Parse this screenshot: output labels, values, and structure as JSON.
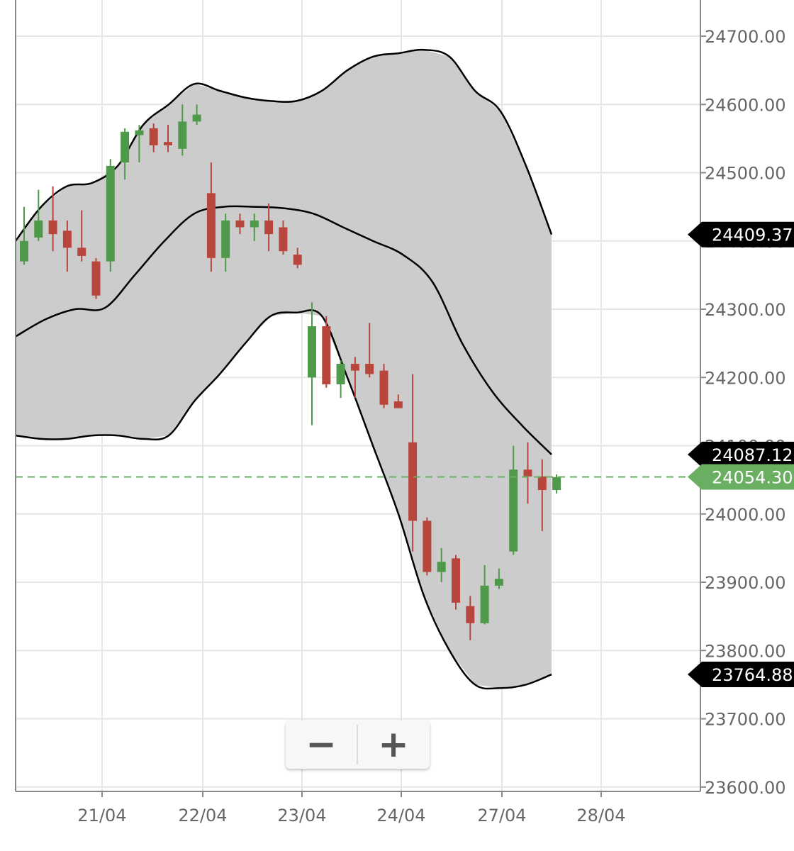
{
  "chart_data": {
    "type": "candlestick",
    "title": "",
    "xlabel": "",
    "ylabel": "",
    "ylim": [
      23580,
      24760
    ],
    "x_ticks": [
      "21/04",
      "22/04",
      "23/04",
      "24/04",
      "27/04",
      "28/04"
    ],
    "y_ticks": [
      "24700.00",
      "24600.00",
      "24500.00",
      "24400.00",
      "24300.00",
      "24200.00",
      "24100.00",
      "24000.00",
      "23900.00",
      "23800.00",
      "23700.00",
      "23600.00"
    ],
    "y_tick_values": [
      24700,
      24600,
      24500,
      24400,
      24300,
      24200,
      24100,
      24000,
      23900,
      23800,
      23700,
      23600
    ],
    "grid": true,
    "candles": [
      {
        "o": 24370,
        "h": 24450,
        "l": 24365,
        "c": 24400
      },
      {
        "o": 24405,
        "h": 24475,
        "l": 24400,
        "c": 24430
      },
      {
        "o": 24430,
        "h": 24480,
        "l": 24385,
        "c": 24410
      },
      {
        "o": 24415,
        "h": 24430,
        "l": 24355,
        "c": 24390
      },
      {
        "o": 24390,
        "h": 24445,
        "l": 24370,
        "c": 24378
      },
      {
        "o": 24370,
        "h": 24375,
        "l": 24315,
        "c": 24320
      },
      {
        "o": 24370,
        "h": 24520,
        "l": 24355,
        "c": 24510
      },
      {
        "o": 24515,
        "h": 24565,
        "l": 24490,
        "c": 24560
      },
      {
        "o": 24555,
        "h": 24570,
        "l": 24515,
        "c": 24562
      },
      {
        "o": 24565,
        "h": 24572,
        "l": 24530,
        "c": 24540
      },
      {
        "o": 24545,
        "h": 24570,
        "l": 24530,
        "c": 24540
      },
      {
        "o": 24535,
        "h": 24600,
        "l": 24525,
        "c": 24575
      },
      {
        "o": 24575,
        "h": 24600,
        "l": 24570,
        "c": 24585
      },
      {
        "o": 24470,
        "h": 24515,
        "l": 24355,
        "c": 24375
      },
      {
        "o": 24375,
        "h": 24440,
        "l": 24355,
        "c": 24430
      },
      {
        "o": 24430,
        "h": 24440,
        "l": 24410,
        "c": 24420
      },
      {
        "o": 24420,
        "h": 24440,
        "l": 24400,
        "c": 24430
      },
      {
        "o": 24430,
        "h": 24455,
        "l": 24385,
        "c": 24410
      },
      {
        "o": 24420,
        "h": 24430,
        "l": 24380,
        "c": 24385
      },
      {
        "o": 24380,
        "h": 24390,
        "l": 24360,
        "c": 24365
      },
      {
        "o": 24200,
        "h": 24310,
        "l": 24130,
        "c": 24275
      },
      {
        "o": 24275,
        "h": 24290,
        "l": 24185,
        "c": 24190
      },
      {
        "o": 24190,
        "h": 24225,
        "l": 24170,
        "c": 24220
      },
      {
        "o": 24220,
        "h": 24230,
        "l": 24170,
        "c": 24210
      },
      {
        "o": 24220,
        "h": 24280,
        "l": 24200,
        "c": 24205
      },
      {
        "o": 24210,
        "h": 24220,
        "l": 24155,
        "c": 24160
      },
      {
        "o": 24165,
        "h": 24175,
        "l": 24155,
        "c": 24155
      },
      {
        "o": 24105,
        "h": 24205,
        "l": 23945,
        "c": 23990
      },
      {
        "o": 23990,
        "h": 23995,
        "l": 23910,
        "c": 23915
      },
      {
        "o": 23915,
        "h": 23950,
        "l": 23900,
        "c": 23930
      },
      {
        "o": 23935,
        "h": 23940,
        "l": 23860,
        "c": 23870
      },
      {
        "o": 23865,
        "h": 23880,
        "l": 23815,
        "c": 23840
      },
      {
        "o": 23840,
        "h": 23925,
        "l": 23838,
        "c": 23895
      },
      {
        "o": 23895,
        "h": 23920,
        "l": 23890,
        "c": 23905
      },
      {
        "o": 23945,
        "h": 24100,
        "l": 23940,
        "c": 24065
      },
      {
        "o": 24065,
        "h": 24105,
        "l": 24015,
        "c": 24055
      },
      {
        "o": 24055,
        "h": 24080,
        "l": 23975,
        "c": 24035
      },
      {
        "o": 24035,
        "h": 24058,
        "l": 24030,
        "c": 24054
      }
    ],
    "upper_band": [
      24400,
      24450,
      24480,
      24485,
      24510,
      24570,
      24600,
      24630,
      24620,
      24610,
      24605,
      24605,
      24620,
      24650,
      24670,
      24675,
      24680,
      24670,
      24620,
      24590,
      24510,
      24409.37
    ],
    "middle_band": [
      24260,
      24285,
      24300,
      24302,
      24350,
      24400,
      24440,
      24450,
      24450,
      24448,
      24440,
      24420,
      24400,
      24380,
      24340,
      24250,
      24180,
      24130,
      24087.12
    ],
    "lower_band": [
      24115,
      24110,
      24110,
      24115,
      24115,
      24110,
      24115,
      24165,
      24205,
      24250,
      24290,
      24295,
      24290,
      24200,
      24100,
      24000,
      23880,
      23800,
      23750,
      23745,
      23750,
      23764.88
    ],
    "price_tags": [
      {
        "label": "24409.37",
        "value": 24409.37,
        "color": "#000000"
      },
      {
        "label": "24087.12",
        "value": 24087.12,
        "color": "#000000"
      },
      {
        "label": "24054.30",
        "value": 24054.3,
        "color": "#6aae62"
      },
      {
        "label": "23764.88",
        "value": 23764.88,
        "color": "#000000"
      }
    ],
    "current_price": 24054.3,
    "colors": {
      "up": "#4f9a4a",
      "down": "#b9463c",
      "band_fill": "#cccccc",
      "band_line": "#000000",
      "current_line": "#6aae62"
    }
  },
  "controls": {
    "zoom_out": "−",
    "zoom_in": "+"
  }
}
